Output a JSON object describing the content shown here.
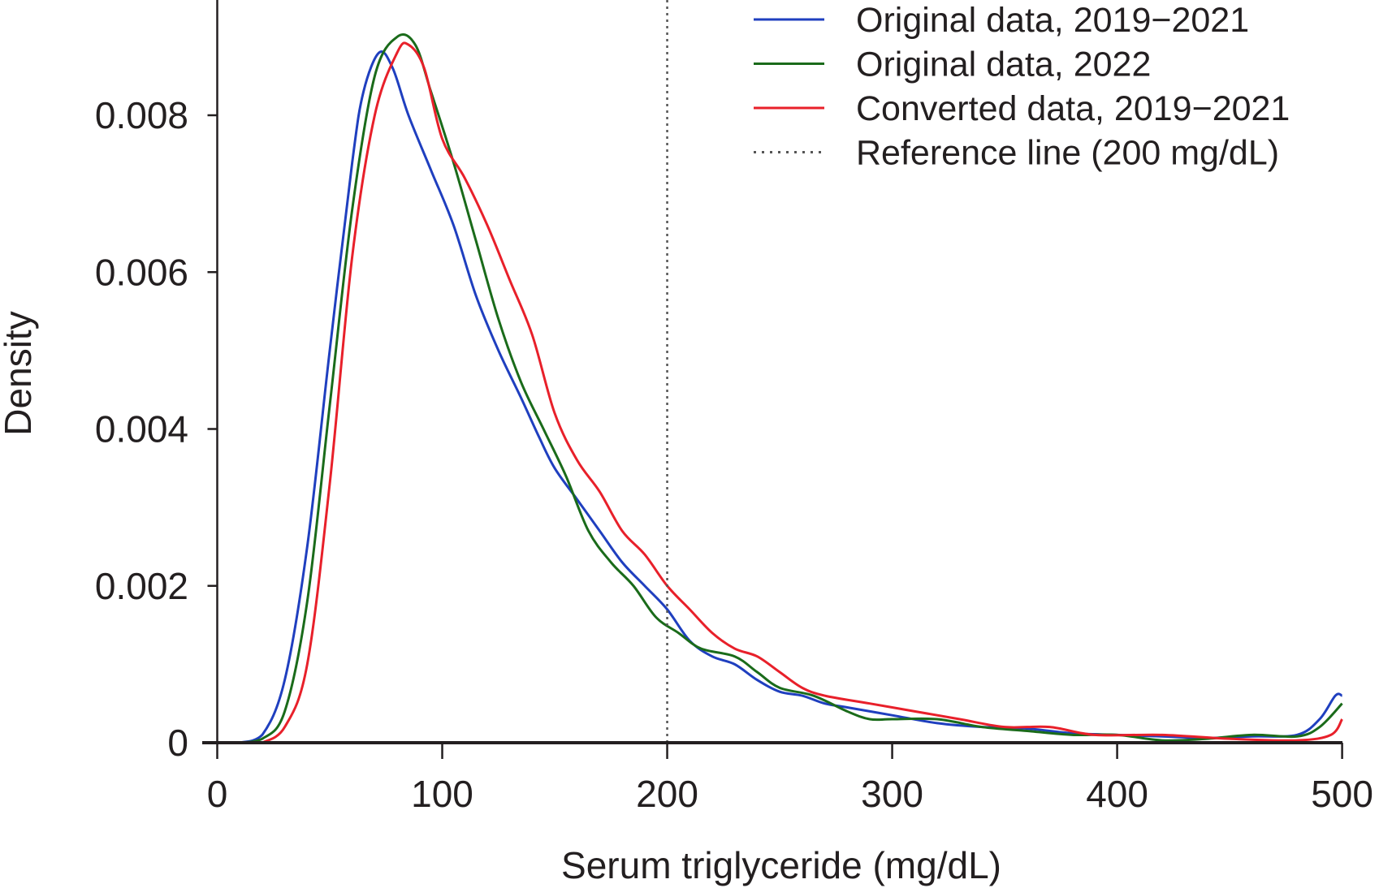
{
  "chart_data": {
    "type": "line",
    "title": "",
    "xlabel": "Serum triglyceride (mg/dL)",
    "ylabel": "Density",
    "xlim": [
      0,
      500
    ],
    "ylim": [
      0,
      0.0095
    ],
    "xticks": [
      0,
      100,
      200,
      300,
      400,
      500
    ],
    "xtick_labels": [
      "0",
      "100",
      "200",
      "300",
      "400",
      "500"
    ],
    "yticks": [
      0,
      0.002,
      0.004,
      0.006,
      0.008
    ],
    "ytick_labels": [
      "0",
      "0.002",
      "0.004",
      "0.006",
      "0.008"
    ],
    "grid": false,
    "legend_position": "top-right",
    "reference_line": {
      "x": 200,
      "label": "Reference line (200 mg/dL)",
      "color": "#555555",
      "style": "dotted"
    },
    "series": [
      {
        "name": "Original data, 2019−2021",
        "color": "#1f3fbf",
        "x": [
          10,
          20,
          30,
          40,
          50,
          60,
          65,
          72,
          78,
          85,
          95,
          105,
          115,
          125,
          135,
          143,
          150,
          160,
          170,
          180,
          190,
          200,
          210,
          220,
          230,
          240,
          250,
          260,
          270,
          280,
          300,
          320,
          340,
          360,
          380,
          400,
          420,
          440,
          460,
          480,
          490,
          497,
          500
        ],
        "y": [
          0,
          0.0001,
          0.0008,
          0.0025,
          0.005,
          0.0074,
          0.0083,
          0.0088,
          0.0086,
          0.008,
          0.0073,
          0.0066,
          0.0057,
          0.005,
          0.0044,
          0.0039,
          0.0035,
          0.0031,
          0.0027,
          0.0023,
          0.002,
          0.0017,
          0.0013,
          0.0011,
          0.001,
          0.0008,
          0.00065,
          0.0006,
          0.0005,
          0.00045,
          0.00035,
          0.00025,
          0.0002,
          0.00018,
          0.00012,
          0.0001,
          8e-05,
          6e-05,
          8e-05,
          0.0001,
          0.0003,
          0.0006,
          0.0006
        ]
      },
      {
        "name": "Original data, 2022",
        "color": "#1a6b1a",
        "x": [
          10,
          20,
          30,
          40,
          50,
          60,
          70,
          80,
          88,
          95,
          105,
          115,
          125,
          135,
          145,
          155,
          165,
          175,
          185,
          195,
          205,
          215,
          230,
          240,
          250,
          265,
          280,
          290,
          300,
          320,
          340,
          360,
          380,
          400,
          420,
          440,
          460,
          480,
          490,
          500
        ],
        "y": [
          0,
          5e-05,
          0.0004,
          0.0018,
          0.0043,
          0.0068,
          0.0085,
          0.009,
          0.0089,
          0.0083,
          0.0074,
          0.0064,
          0.0054,
          0.0046,
          0.004,
          0.0034,
          0.0027,
          0.0023,
          0.002,
          0.0016,
          0.0014,
          0.0012,
          0.0011,
          0.0009,
          0.0007,
          0.0006,
          0.0004,
          0.0003,
          0.0003,
          0.0003,
          0.0002,
          0.00015,
          0.0001,
          0.0001,
          3e-05,
          5e-05,
          0.0001,
          8e-05,
          0.0002,
          0.0005
        ]
      },
      {
        "name": "Converted data, 2019−2021",
        "color": "#e8202a",
        "x": [
          20,
          30,
          40,
          50,
          60,
          70,
          80,
          85,
          92,
          100,
          110,
          120,
          130,
          140,
          150,
          160,
          170,
          180,
          190,
          200,
          210,
          220,
          230,
          240,
          250,
          260,
          270,
          290,
          310,
          330,
          350,
          370,
          390,
          420,
          450,
          480,
          495,
          500
        ],
        "y": [
          0,
          0.0002,
          0.001,
          0.0033,
          0.0062,
          0.008,
          0.0088,
          0.0089,
          0.0086,
          0.0077,
          0.0072,
          0.0066,
          0.0059,
          0.0052,
          0.0042,
          0.0036,
          0.0032,
          0.0027,
          0.0024,
          0.002,
          0.0017,
          0.0014,
          0.0012,
          0.0011,
          0.0009,
          0.0007,
          0.0006,
          0.0005,
          0.0004,
          0.0003,
          0.0002,
          0.0002,
          0.0001,
          0.0001,
          5e-05,
          3e-05,
          0.0001,
          0.0003
        ]
      }
    ]
  }
}
